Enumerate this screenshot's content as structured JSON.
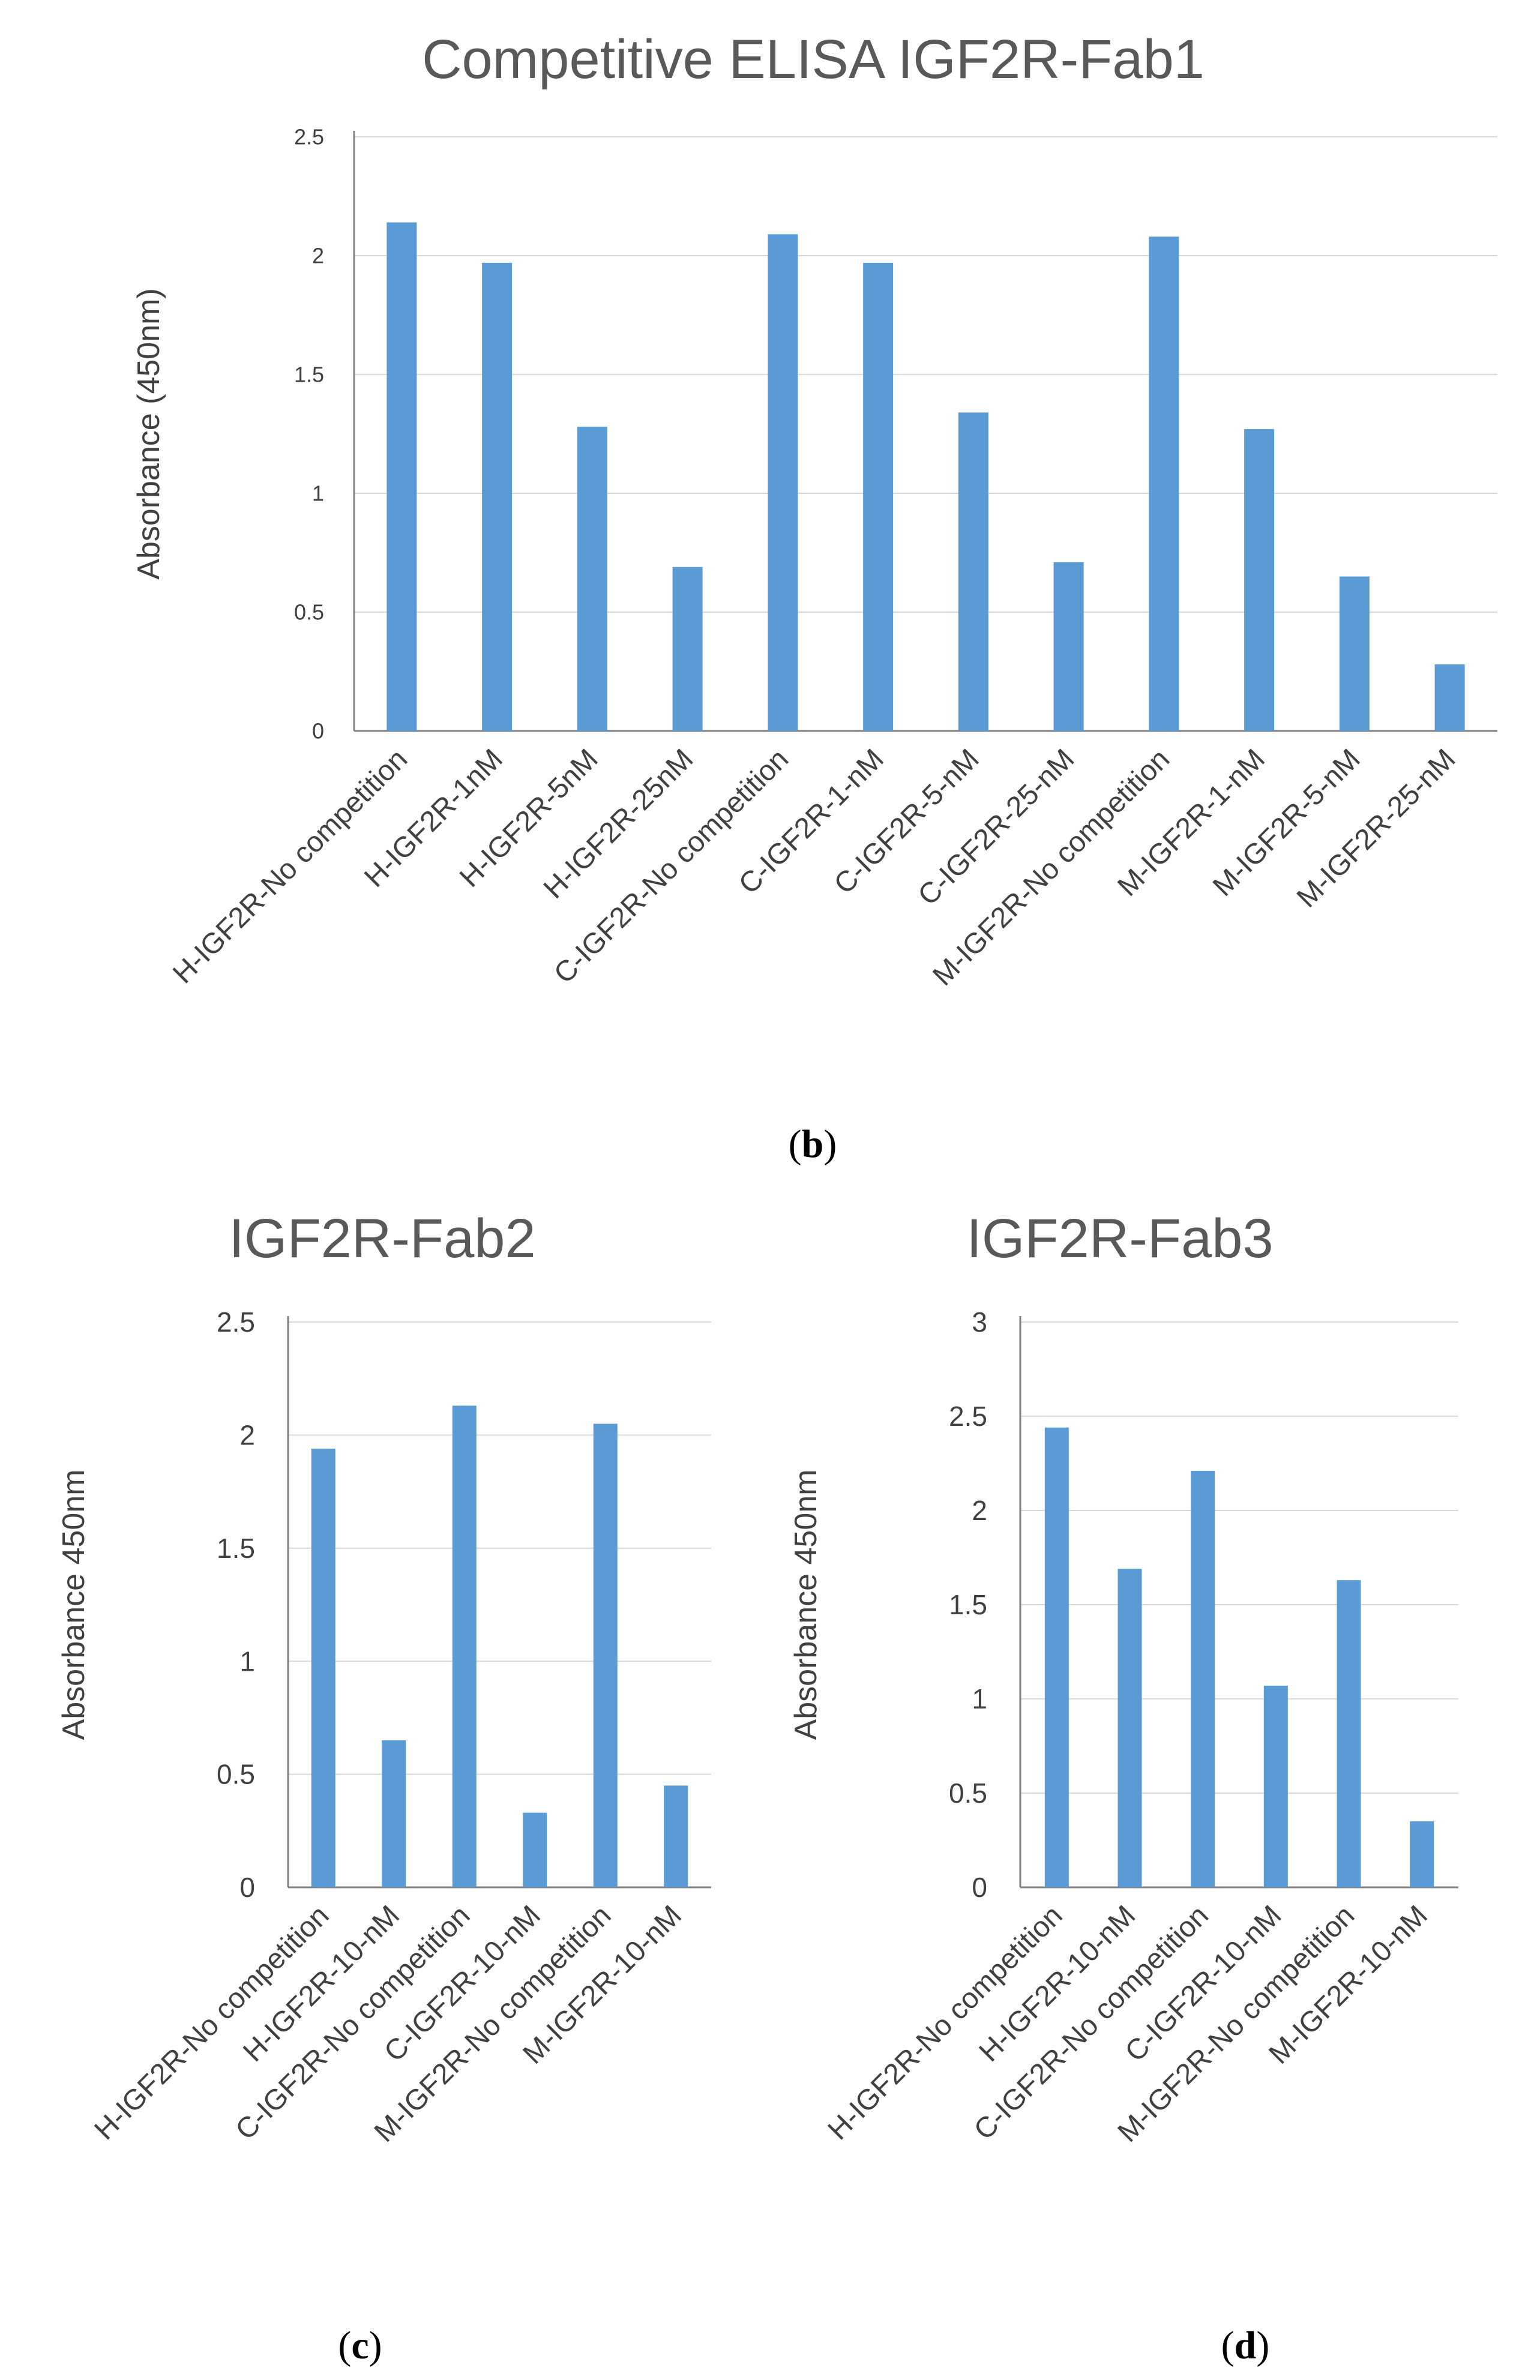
{
  "chart_data": [
    {
      "panel": "b",
      "caption": {
        "open": "(",
        "letter": "b",
        "close": ")"
      },
      "type": "bar",
      "title": "Competitive ELISA IGF2R-Fab1",
      "xlabel": "",
      "ylabel": "Absorbance (450nm)",
      "ylim": [
        0,
        2.5
      ],
      "yticks": [
        "0",
        "0.5",
        "1",
        "1.5",
        "2",
        "2.5"
      ],
      "grid": true,
      "color": "#5b9bd5",
      "categories": [
        "H-IGF2R-No competition",
        "H-IGF2R-1nM",
        "H-IGF2R-5nM",
        "H-IGF2R-25nM",
        "C-IGF2R-No competition",
        "C-IGF2R-1-nM",
        "C-IGF2R-5-nM",
        "C-IGF2R-25-nM",
        "M-IGF2R-No competition",
        "M-IGF2R-1-nM",
        "M-IGF2R-5-nM",
        "M-IGF2R-25-nM"
      ],
      "values": [
        2.14,
        1.97,
        1.28,
        0.69,
        2.09,
        1.97,
        1.34,
        0.71,
        2.08,
        1.27,
        0.65,
        0.28
      ]
    },
    {
      "panel": "c",
      "caption": {
        "open": "(",
        "letter": "c",
        "close": ")"
      },
      "type": "bar",
      "title": "IGF2R-Fab2",
      "xlabel": "",
      "ylabel": "Absorbance 450nm",
      "ylim": [
        0,
        2.5
      ],
      "yticks": [
        "0",
        "0.5",
        "1",
        "1.5",
        "2",
        "2.5"
      ],
      "grid": true,
      "color": "#5b9bd5",
      "categories": [
        "H-IGF2R-No competition",
        "H-IGF2R-10-nM",
        "C-IGF2R-No competition",
        "C-IGF2R-10-nM",
        "M-IGF2R-No competition",
        "M-IGF2R-10-nM"
      ],
      "values": [
        1.94,
        0.65,
        2.13,
        0.33,
        2.05,
        0.45
      ]
    },
    {
      "panel": "d",
      "caption": {
        "open": "(",
        "letter": "d",
        "close": ")"
      },
      "type": "bar",
      "title": "IGF2R-Fab3",
      "xlabel": "",
      "ylabel": "Absorbance 450nm",
      "ylim": [
        0,
        3
      ],
      "yticks": [
        "0",
        "0.5",
        "1",
        "1.5",
        "2",
        "2.5",
        "3"
      ],
      "grid": true,
      "color": "#5b9bd5",
      "categories": [
        "H-IGF2R-No competition",
        "H-IGF2R-10-nM",
        "C-IGF2R-No competition",
        "C-IGF2R-10-nM",
        "M-IGF2R-No competition",
        "M-IGF2R-10-nM"
      ],
      "values": [
        2.44,
        1.69,
        2.21,
        1.07,
        1.63,
        0.35
      ]
    }
  ]
}
